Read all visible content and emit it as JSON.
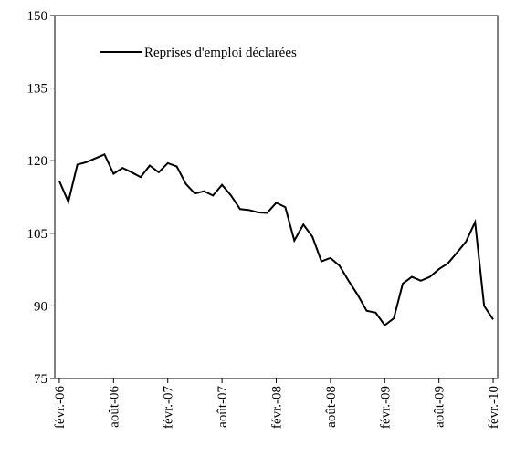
{
  "chart_data": {
    "type": "line",
    "categories": [
      "févr.-06",
      null,
      null,
      null,
      null,
      null,
      "août-06",
      null,
      null,
      null,
      null,
      null,
      "févr.-07",
      null,
      null,
      null,
      null,
      null,
      "août-07",
      null,
      null,
      null,
      null,
      null,
      "févr.-08",
      null,
      null,
      null,
      null,
      null,
      "août-08",
      null,
      null,
      null,
      null,
      null,
      "févr.-09",
      null,
      null,
      null,
      null,
      null,
      "août-09",
      null,
      null,
      null,
      null,
      null,
      "févr.-10"
    ],
    "series": [
      {
        "name": "Reprises d'emploi déclarées",
        "color": "#000000",
        "values": [
          115.8,
          111.5,
          119.2,
          119.7,
          120.5,
          121.3,
          117.3,
          118.5,
          117.6,
          116.6,
          119.0,
          117.6,
          119.5,
          118.8,
          115.2,
          113.2,
          113.7,
          112.8,
          115.0,
          112.8,
          110.0,
          109.8,
          109.3,
          109.2,
          111.3,
          110.4,
          103.5,
          106.8,
          104.3,
          99.2,
          99.9,
          98.3,
          95.2,
          92.3,
          89.0,
          88.6,
          86.0,
          87.4,
          94.6,
          96.0,
          95.2,
          96.0,
          97.6,
          98.8,
          101.0,
          103.3,
          107.3,
          90.0,
          87.2
        ]
      }
    ],
    "ylim": [
      75,
      150
    ],
    "yticks": [
      75,
      90,
      105,
      120,
      135,
      150
    ],
    "grid": false,
    "legend": "upper left"
  }
}
